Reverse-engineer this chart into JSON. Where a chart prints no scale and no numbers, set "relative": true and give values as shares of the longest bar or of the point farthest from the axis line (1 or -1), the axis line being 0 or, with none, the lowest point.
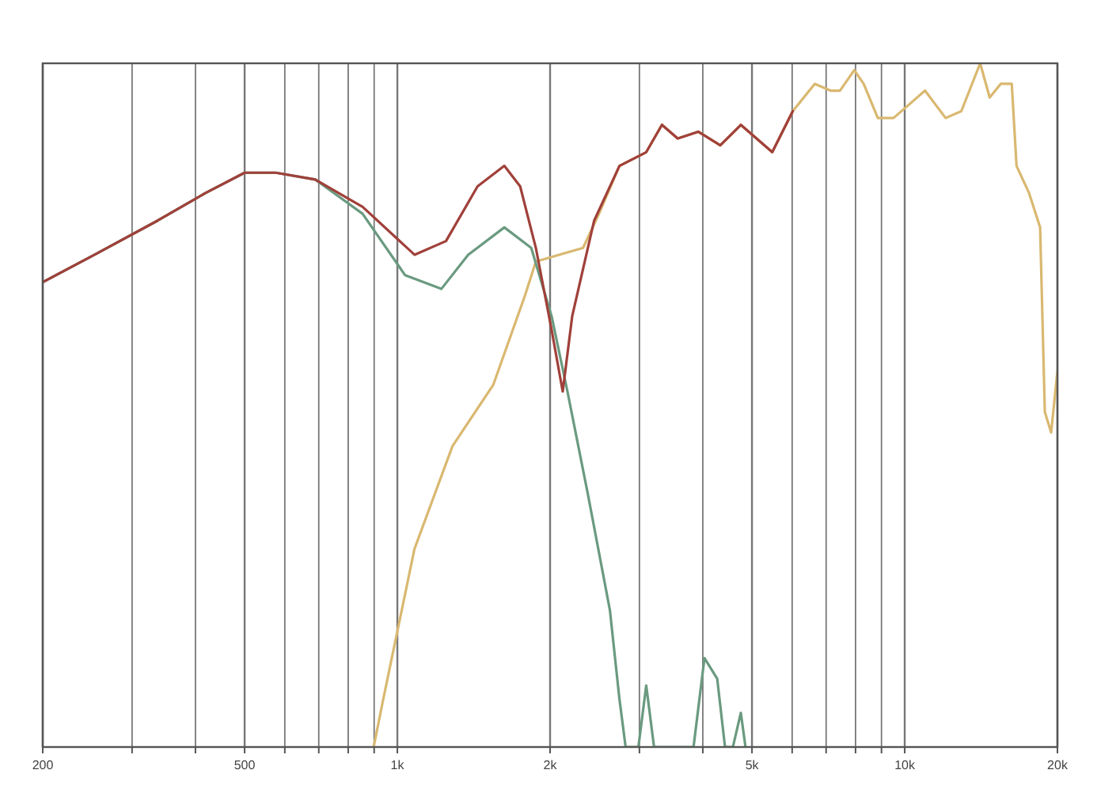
{
  "chart_data": {
    "type": "line",
    "relative": true,
    "log": "x",
    "grid": "x",
    "xlim": [
      200,
      20000
    ],
    "xticks": [
      {
        "value": 200,
        "label": "200"
      },
      {
        "value": 300,
        "label": null
      },
      {
        "value": 400,
        "label": null
      },
      {
        "value": 500,
        "label": "500"
      },
      {
        "value": 600,
        "label": null
      },
      {
        "value": 700,
        "label": null
      },
      {
        "value": 800,
        "label": null
      },
      {
        "value": 900,
        "label": null
      },
      {
        "value": 1000,
        "label": "1k"
      },
      {
        "value": 2000,
        "label": "2k"
      },
      {
        "value": 3000,
        "label": null
      },
      {
        "value": 4000,
        "label": null
      },
      {
        "value": 5000,
        "label": "5k"
      },
      {
        "value": 6000,
        "label": null
      },
      {
        "value": 7000,
        "label": null
      },
      {
        "value": 8000,
        "label": null
      },
      {
        "value": 9000,
        "label": null
      },
      {
        "value": 10000,
        "label": "10k"
      },
      {
        "value": 20000,
        "label": "20k"
      }
    ],
    "series": [
      {
        "color": "#d9b870",
        "x": [
          898,
          938,
          1081,
          1284,
          1546,
          1784,
          1875,
          2323,
          2497,
          2740,
          3094,
          3323,
          3569,
          3918,
          4330,
          4753,
          5482,
          6016,
          6650,
          7143,
          7455,
          7954,
          8300,
          8852,
          9506,
          10210,
          10966,
          12040,
          12930,
          14086,
          14706,
          15460,
          16256,
          16612,
          17588,
          18488,
          18890,
          19438,
          20000
        ],
        "values": [
          0,
          0.07,
          0.29,
          0.44,
          0.53,
          0.66,
          0.71,
          0.73,
          0.78,
          0.85,
          0.87,
          0.91,
          0.89,
          0.9,
          0.88,
          0.91,
          0.87,
          0.93,
          0.97,
          0.96,
          0.96,
          0.99,
          0.97,
          0.92,
          0.92,
          0.94,
          0.96,
          0.92,
          0.93,
          1.0,
          0.95,
          0.97,
          0.97,
          0.85,
          0.81,
          0.76,
          0.49,
          0.46,
          0.55
        ]
      },
      {
        "color": "#6a9a80",
        "x": [
          200,
          253,
          337,
          418,
          500,
          576,
          689,
          854,
          1036,
          1221,
          1379,
          1625,
          1836,
          2014,
          2164,
          2374,
          2624,
          2740,
          2818,
          2986,
          3094,
          3206,
          3835,
          4030,
          4270,
          4424,
          4585,
          4753,
          4855
        ],
        "values": [
          0.68,
          0.72,
          0.77,
          0.81,
          0.84,
          0.84,
          0.83,
          0.78,
          0.69,
          0.67,
          0.72,
          0.76,
          0.73,
          0.63,
          0.52,
          0.37,
          0.2,
          0.07,
          0,
          0,
          0.09,
          0,
          0,
          0.13,
          0.1,
          0,
          0,
          0.05,
          0
        ]
      },
      {
        "color": "#a0403a",
        "x": [
          200,
          253,
          337,
          418,
          500,
          576,
          689,
          854,
          1081,
          1247,
          1439,
          1625,
          1746,
          1875,
          2014,
          2118,
          2211,
          2443,
          2740,
          3094,
          3323,
          3569,
          3918,
          4330,
          4753,
          5482,
          6016
        ],
        "values": [
          0.68,
          0.72,
          0.77,
          0.81,
          0.84,
          0.84,
          0.83,
          0.79,
          0.72,
          0.74,
          0.82,
          0.85,
          0.82,
          0.73,
          0.61,
          0.52,
          0.63,
          0.77,
          0.85,
          0.87,
          0.91,
          0.89,
          0.9,
          0.88,
          0.91,
          0.87,
          0.93
        ]
      }
    ]
  }
}
